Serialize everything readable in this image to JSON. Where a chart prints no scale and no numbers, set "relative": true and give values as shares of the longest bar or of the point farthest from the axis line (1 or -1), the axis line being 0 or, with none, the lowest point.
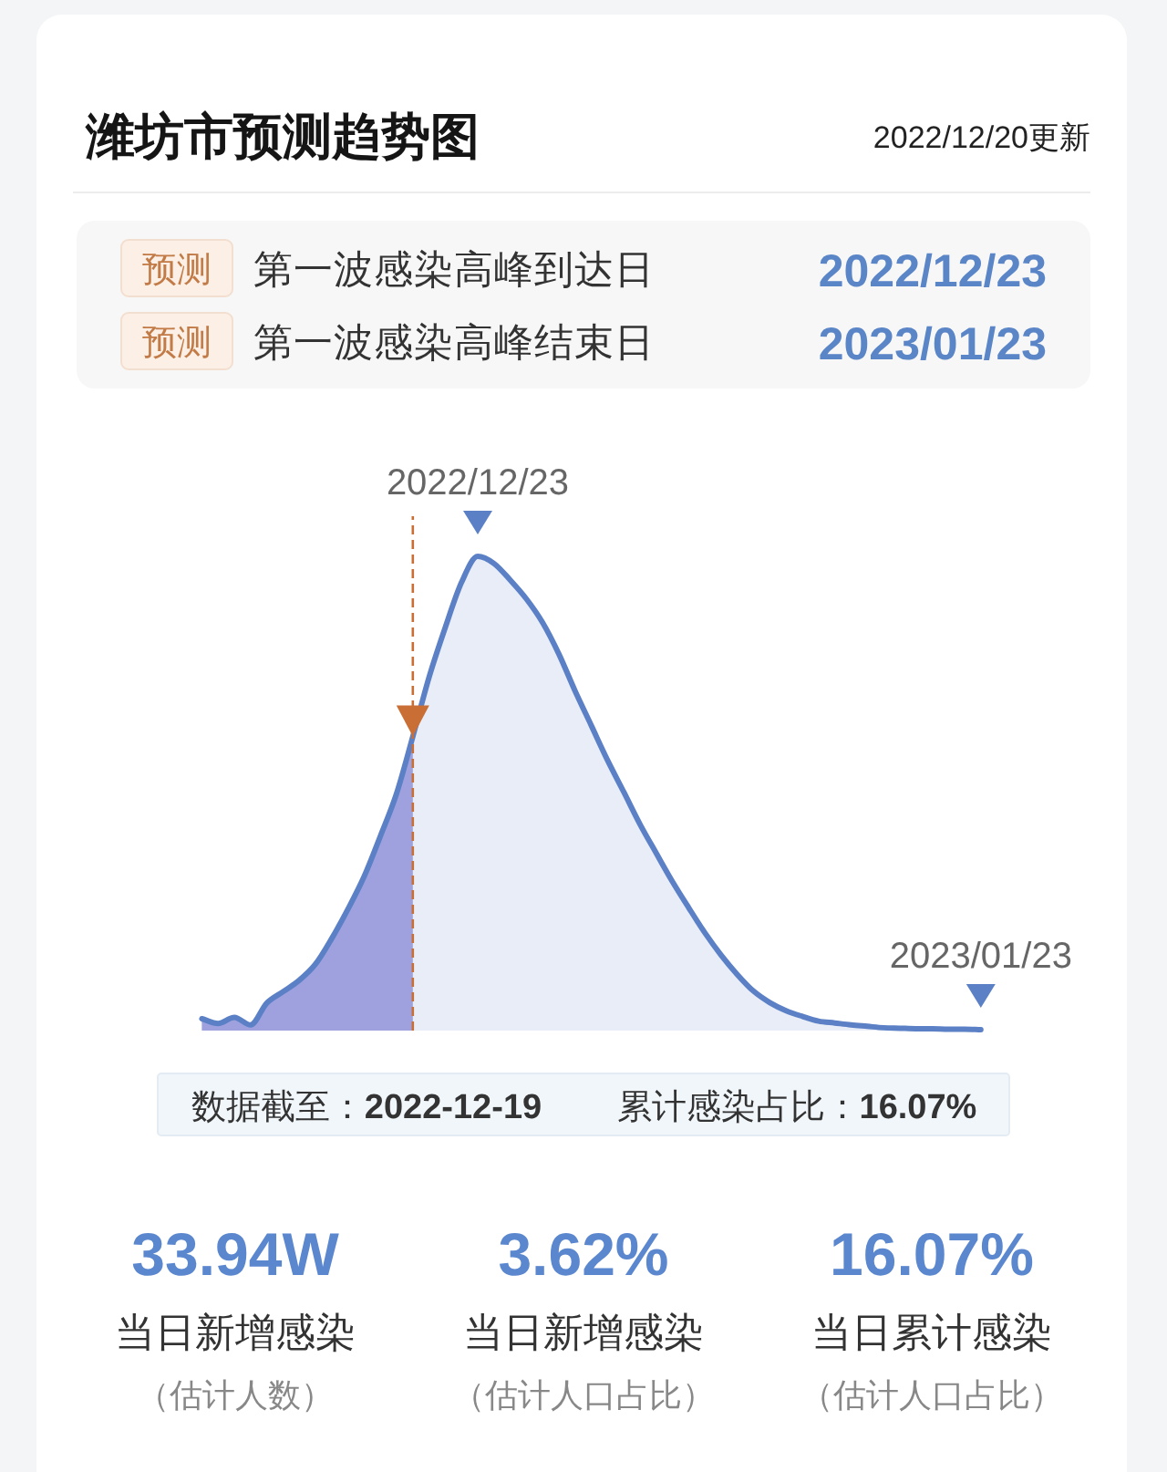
{
  "chart_data": [
    {
      "type": "area",
      "title": "潍坊市预测趋势图",
      "subtitle": "2022/12/20更新",
      "relative": true,
      "categories": [
        null,
        null,
        null,
        null,
        null,
        null,
        null,
        null,
        null,
        null,
        null,
        null,
        null,
        null,
        null,
        null,
        null,
        null,
        null,
        null,
        null,
        null,
        null,
        null,
        null,
        null,
        null,
        null,
        null,
        null,
        null,
        null,
        null,
        null,
        null,
        null,
        null,
        null,
        null,
        null,
        null,
        null,
        null,
        null,
        null,
        null,
        null,
        null,
        null
      ],
      "series": [
        {
          "color": "#aba7e4",
          "values": [
            0.025,
            0.015,
            0.028,
            0.012,
            0.058,
            0.082,
            0.106,
            0.14,
            0.194,
            0.256,
            0.325,
            0.41,
            0.5,
            0.62,
            null,
            null,
            null,
            null,
            null,
            null,
            null,
            null,
            null,
            null,
            null,
            null,
            null,
            null,
            null,
            null,
            null,
            null,
            null,
            null,
            null,
            null,
            null,
            null,
            null,
            null,
            null,
            null,
            null,
            null,
            null,
            null,
            null,
            null,
            null
          ]
        },
        {
          "color": "#5b80c6",
          "values": [
            0.025,
            0.015,
            0.028,
            0.012,
            0.058,
            0.082,
            0.106,
            0.14,
            0.194,
            0.256,
            0.325,
            0.41,
            0.5,
            0.62,
            0.745,
            0.85,
            0.945,
            1,
            0.985,
            0.95,
            0.91,
            0.86,
            0.794,
            0.716,
            0.643,
            0.57,
            0.503,
            0.435,
            0.374,
            0.314,
            0.259,
            0.206,
            0.159,
            0.118,
            0.083,
            0.059,
            0.042,
            0.03,
            0.02,
            0.016,
            0.012,
            0.009,
            0.006,
            0.005,
            0.004,
            0.004,
            0.003,
            0.003,
            0.002
          ]
        }
      ],
      "annotations": [
        {
          "text": "2022/12/23",
          "y": 1
        },
        {
          "text": "2023/01/23",
          "y": 0.002
        },
        "预测",
        "第一波感染高峰到达日",
        "2022/12/23",
        "预测",
        "第一波感染高峰结束日",
        "2023/01/23",
        "数据截至：**2022-12-19**",
        "累计感染占比：**16.07%**"
      ]
    },
    {
      "type": "other",
      "annotations": [
        "33.94W",
        "当日新增感染",
        "（估计人数）",
        "3.62%",
        "当日新增感染",
        "（估计人口占比）",
        "16.07%",
        "当日累计感染",
        "（估计人口占比）"
      ]
    }
  ]
}
